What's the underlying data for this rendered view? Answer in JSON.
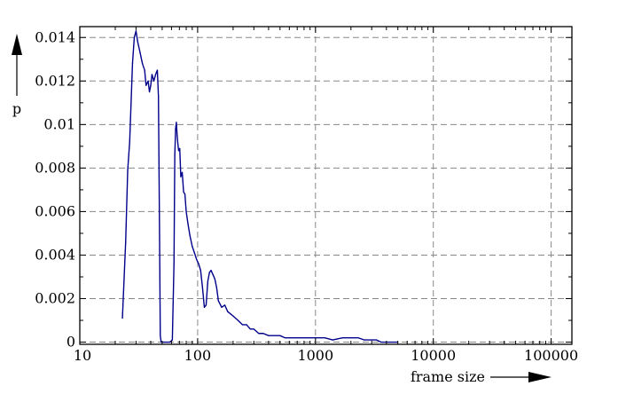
{
  "chart_data": {
    "type": "line",
    "title": "",
    "xlabel": "frame size",
    "ylabel": "p",
    "x_scale": "log",
    "xlim": [
      10,
      150000
    ],
    "ylim": [
      -0.0001,
      0.0145
    ],
    "grid": true,
    "x_ticks": [
      {
        "value": 10,
        "label": "10"
      },
      {
        "value": 100,
        "label": "100"
      },
      {
        "value": 1000,
        "label": "1000"
      },
      {
        "value": 10000,
        "label": "10000"
      },
      {
        "value": 100000,
        "label": "100000"
      }
    ],
    "y_ticks": [
      {
        "value": 0,
        "label": "0"
      },
      {
        "value": 0.002,
        "label": "0.002"
      },
      {
        "value": 0.004,
        "label": "0.004"
      },
      {
        "value": 0.006,
        "label": "0.006"
      },
      {
        "value": 0.008,
        "label": "0.008"
      },
      {
        "value": 0.01,
        "label": "0.01"
      },
      {
        "value": 0.012,
        "label": "0.012"
      },
      {
        "value": 0.014,
        "label": "0.014"
      }
    ],
    "series": [
      {
        "color": "#00008b",
        "x": [
          23,
          24.5,
          25.5,
          26.5,
          28,
          29,
          30,
          31,
          32.5,
          34,
          35.5,
          36.5,
          38,
          39,
          40,
          41,
          42.5,
          44,
          45.5,
          46.5,
          47.5,
          48.2,
          49,
          50,
          52,
          55,
          58,
          61,
          63,
          64,
          65,
          66,
          67,
          68,
          69,
          70.5,
          72,
          74,
          76,
          78,
          80,
          83,
          86,
          90,
          94,
          98,
          102,
          106,
          110,
          114,
          118,
          122,
          126,
          130,
          135,
          140,
          145,
          150,
          160,
          170,
          180,
          190,
          200,
          220,
          240,
          260,
          280,
          300,
          330,
          360,
          400,
          450,
          500,
          550,
          600,
          700,
          800,
          900,
          1000,
          1200,
          1400,
          1700,
          2000,
          2300,
          2600,
          3000,
          3300,
          3600,
          4000,
          4500,
          5000
        ],
        "y": [
          0.0011,
          0.0046,
          0.0079,
          0.0092,
          0.0128,
          0.014,
          0.0143,
          0.0138,
          0.0133,
          0.0128,
          0.0125,
          0.0118,
          0.012,
          0.0115,
          0.0118,
          0.0123,
          0.012,
          0.0123,
          0.0125,
          0.0113,
          0.005,
          0.0003,
          0.0,
          0.0,
          0.0,
          0.0,
          0.0,
          0.0001,
          0.0036,
          0.0086,
          0.0098,
          0.0101,
          0.0095,
          0.0091,
          0.0088,
          0.0089,
          0.0076,
          0.0078,
          0.0069,
          0.0068,
          0.006,
          0.0054,
          0.0049,
          0.0044,
          0.0041,
          0.0038,
          0.0036,
          0.0033,
          0.0025,
          0.0016,
          0.0017,
          0.0028,
          0.0032,
          0.0033,
          0.0031,
          0.0029,
          0.0025,
          0.0019,
          0.0016,
          0.0017,
          0.0014,
          0.0013,
          0.0012,
          0.001,
          0.0008,
          0.0008,
          0.0006,
          0.0006,
          0.0004,
          0.0004,
          0.0003,
          0.0003,
          0.0003,
          0.0002,
          0.0002,
          0.0002,
          0.0002,
          0.0002,
          0.0002,
          0.0002,
          0.0001,
          0.0002,
          0.0002,
          0.0002,
          0.0001,
          0.0001,
          0.0001,
          0.0,
          0.0,
          0.0,
          0.0
        ]
      }
    ]
  }
}
